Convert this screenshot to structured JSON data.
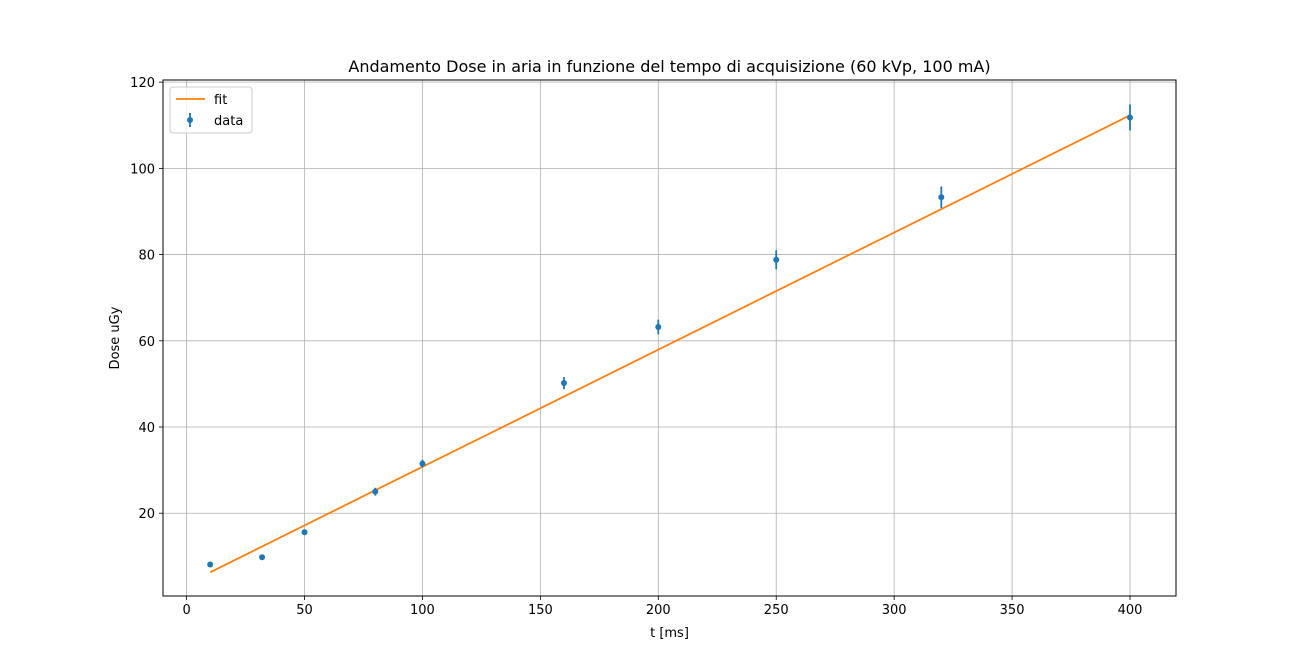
{
  "chart_data": {
    "type": "scatter",
    "title": "Andamento Dose in aria in funzione del tempo di acquisizione (60 kVp, 100 mA)",
    "xlabel": "t [ms]",
    "ylabel": "Dose uGy",
    "xlim": [
      -10,
      419.5
    ],
    "ylim": [
      0.8,
      120.5
    ],
    "xticks": [
      0,
      50,
      100,
      150,
      200,
      250,
      300,
      350,
      400
    ],
    "yticks": [
      20,
      40,
      60,
      80,
      100,
      120
    ],
    "grid": true,
    "legend_position": "top-left",
    "series": [
      {
        "name": "fit",
        "kind": "line",
        "color": "#ff7f0e",
        "x": [
          10,
          400
        ],
        "y": [
          6.3,
          112.3
        ]
      },
      {
        "name": "data",
        "kind": "errorbar",
        "color": "#1f77b4",
        "x": [
          10,
          32,
          50,
          80,
          100,
          160,
          200,
          250,
          320,
          400
        ],
        "y": [
          8.1,
          9.8,
          15.6,
          25.0,
          31.5,
          50.2,
          63.2,
          78.8,
          93.3,
          111.8
        ],
        "yerr": [
          0.4,
          0.5,
          0.6,
          0.9,
          0.9,
          1.4,
          1.7,
          2.2,
          2.5,
          3.0
        ]
      }
    ]
  }
}
